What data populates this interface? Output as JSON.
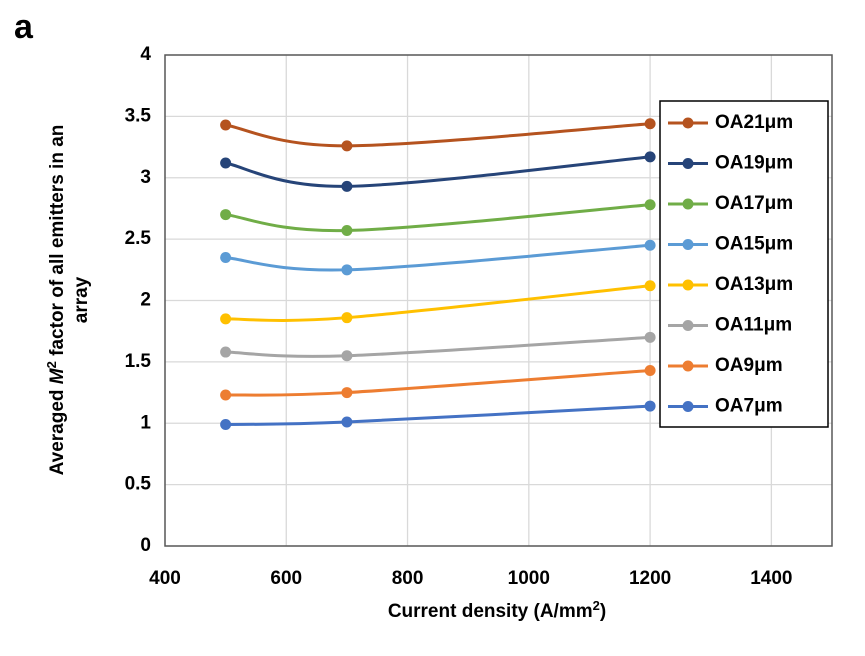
{
  "panel_label": "a",
  "chart_data": {
    "type": "line",
    "x_label": [
      "Current density (A/mm",
      "2",
      ")"
    ],
    "y_label": [
      "Averaged ",
      "M",
      "2",
      " factor of all emitters in an",
      "array"
    ],
    "x": [
      500,
      700,
      1200
    ],
    "series": [
      {
        "name": "OA21μm",
        "color": "#b5531f",
        "values": [
          3.43,
          3.26,
          3.44
        ]
      },
      {
        "name": "OA19μm",
        "color": "#264478",
        "values": [
          3.12,
          2.93,
          3.17
        ]
      },
      {
        "name": "OA17μm",
        "color": "#70ad47",
        "values": [
          2.7,
          2.57,
          2.78
        ]
      },
      {
        "name": "OA15μm",
        "color": "#5b9bd5",
        "values": [
          2.35,
          2.25,
          2.45
        ]
      },
      {
        "name": "OA13μm",
        "color": "#ffc000",
        "values": [
          1.85,
          1.86,
          2.12
        ]
      },
      {
        "name": "OA11μm",
        "color": "#a5a5a5",
        "values": [
          1.58,
          1.55,
          1.7
        ]
      },
      {
        "name": "OA9μm",
        "color": "#ed7d31",
        "values": [
          1.23,
          1.25,
          1.43
        ]
      },
      {
        "name": "OA7μm",
        "color": "#4472c4",
        "values": [
          0.99,
          1.01,
          1.14
        ]
      }
    ],
    "xlim": [
      400,
      1500
    ],
    "xticks": [
      400,
      600,
      800,
      1000,
      1200,
      1400
    ],
    "ylim": [
      0,
      4
    ],
    "yticks": [
      0,
      0.5,
      1,
      1.5,
      2,
      2.5,
      3,
      3.5,
      4
    ],
    "grid": true,
    "smooth": true,
    "legend": "right"
  }
}
